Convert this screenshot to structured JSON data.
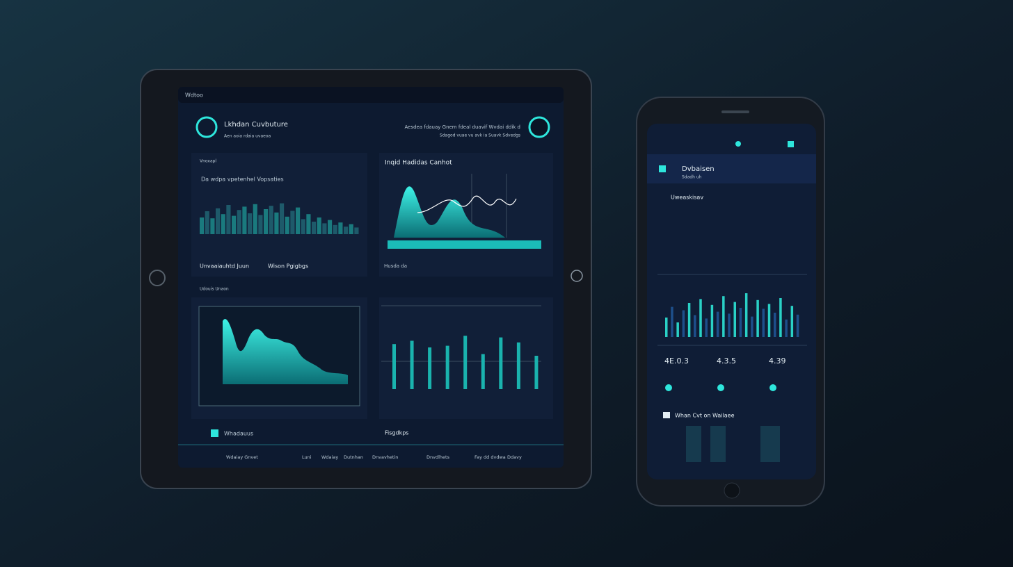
{
  "tablet": {
    "status": "Wdtoo",
    "header": {
      "title": "Lkhdan Cuvbuture",
      "subtitle": "Aen aoia rdaia uvaeoa",
      "note1": "Aesdea fdauay Gnem fdeal duavif Wvdai ddik d",
      "note2": "Sdagod vuae vu avk ia Suavk Sdvedgs"
    },
    "panel_a": {
      "label": "Vnoxapl",
      "title": "Da wdpa vpetenhel Vopsaties",
      "footer": "Unvaaiauhtd Juun",
      "footer2": "Wison Pgigbgs",
      "values": [
        40,
        55,
        38,
        62,
        48,
        70,
        44,
        58,
        66,
        50,
        72,
        46,
        60,
        68,
        52,
        74,
        42,
        56,
        64,
        36,
        48,
        30,
        40,
        26,
        34,
        22,
        28,
        18,
        24,
        16
      ]
    },
    "panel_b": {
      "title": "Inqid Hadidas Canhot",
      "footer": "Husda da"
    },
    "section": "Udouis Unaon",
    "panel_d": {
      "values": [
        54,
        58,
        50,
        52,
        64,
        42,
        62,
        56,
        40
      ]
    },
    "legend": "Whadauus",
    "legend2": "Fisgdkps",
    "footer": [
      "Wdaiay Gnvet",
      "Luni",
      "Wdaiay",
      "Dutnhan",
      "Dnvavhetin",
      "Dnvdlhets",
      "Fay dd dvdwa",
      "Ddavy"
    ]
  },
  "phone": {
    "title": "Dvbaisen",
    "subtitle": "Sdadh uh",
    "section": "Uweaskisav",
    "bars": [
      40,
      62,
      30,
      55,
      70,
      45,
      78,
      38,
      66,
      52,
      84,
      48,
      72,
      60,
      90,
      42,
      76,
      58,
      68,
      50,
      80,
      36,
      64,
      46
    ],
    "colors": [
      "#2ad1c6",
      "#1d4f8a"
    ],
    "stats": [
      "4E.0.3",
      "4.3.5",
      "4.39"
    ],
    "list_title": "Whan Cvt on Wailaee"
  }
}
